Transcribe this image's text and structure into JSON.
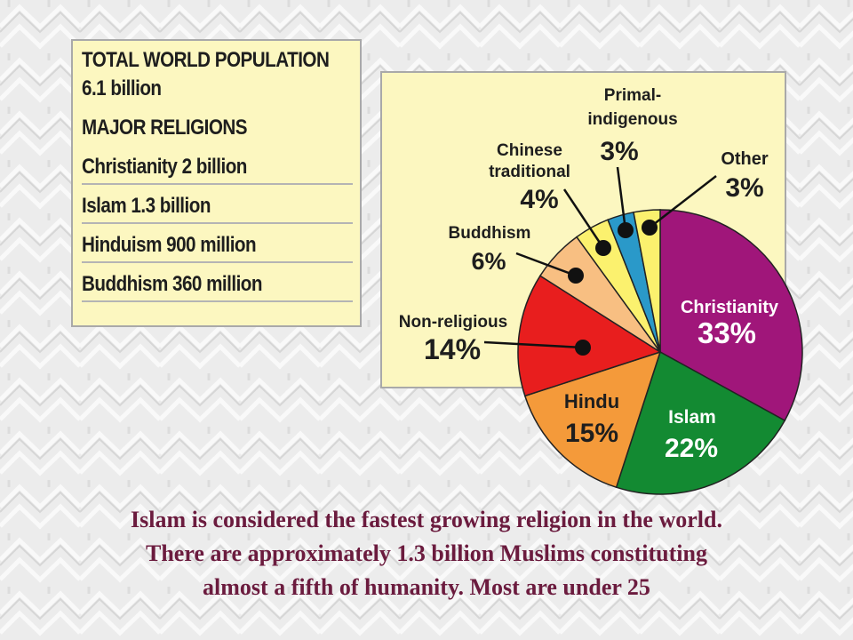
{
  "colors": {
    "panel_fill": "#fcf7c0",
    "caption_text": "#6b1b3e"
  },
  "stats": {
    "total_heading": "TOTAL WORLD POPULATION",
    "total_value": "6.1 billion",
    "religions_heading": "MAJOR RELIGIONS",
    "items": [
      "Christianity 2 billion",
      "Islam 1.3 billion",
      "Hinduism 900 million",
      "Buddhism 360 million"
    ]
  },
  "caption": {
    "line1": "Islam is considered the fastest growing religion in the world.",
    "line2": "There are approximately 1.3 billion Muslims constituting",
    "line3": "almost a fifth of humanity. Most are under 25"
  },
  "chart_data": {
    "type": "pie",
    "slices": [
      {
        "label": "Christianity",
        "value": 33,
        "display": "33%",
        "color": "#a0167a"
      },
      {
        "label": "Islam",
        "value": 22,
        "display": "22%",
        "color": "#138a32"
      },
      {
        "label": "Hindu",
        "value": 15,
        "display": "15%",
        "color": "#f49a3a"
      },
      {
        "label": "Non-religious",
        "value": 14,
        "display": "14%",
        "color": "#e81e1e"
      },
      {
        "label": "Buddhism",
        "value": 6,
        "display": "6%",
        "color": "#f8bf82"
      },
      {
        "label": "Chinese traditional",
        "value": 4,
        "display": "4%",
        "color": "#fbf16e"
      },
      {
        "label": "Primal-indigenous",
        "value": 3,
        "display": "3%",
        "color": "#2a99c9"
      },
      {
        "label": "Other",
        "value": 3,
        "display": "3%",
        "color": "#fbf16e"
      }
    ]
  }
}
